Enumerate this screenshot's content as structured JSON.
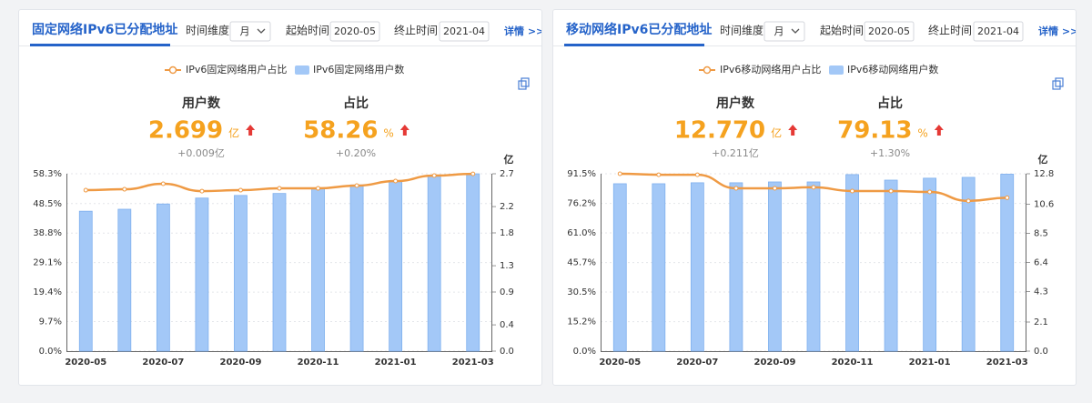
{
  "panels": [
    {
      "title": "固定网络IPv6已分配地址",
      "controls": {
        "dimension_label": "时间维度",
        "dimension_value": "月",
        "start_label": "起始时间",
        "start_value": "2020-05",
        "end_label": "终止时间",
        "end_value": "2021-04",
        "details": "详情 >>"
      },
      "stats": [
        {
          "label": "用户数",
          "value": "2.699",
          "unit": "亿",
          "change": "+0.009亿"
        },
        {
          "label": "占比",
          "value": "58.26",
          "unit": "%",
          "change": "+0.20%"
        }
      ],
      "chart": {
        "type": "bar-line",
        "categories": [
          "2020-05",
          null,
          "2020-07",
          null,
          "2020-09",
          null,
          "2020-11",
          null,
          "2021-01",
          null,
          "2021-03"
        ],
        "series": [
          {
            "name": "IPv6固定网络用户占比",
            "type": "line",
            "color": "#ef9a44",
            "values": [
              52.9,
              53.2,
              55.0,
              52.6,
              52.9,
              53.5,
              53.5,
              54.4,
              55.9,
              57.7,
              58.26
            ]
          },
          {
            "name": "IPv6固定网络用户数",
            "type": "bar",
            "axis": "y2",
            "color": "#a3c8f7",
            "values": [
              2.13,
              2.16,
              2.24,
              2.33,
              2.37,
              2.4,
              2.48,
              2.53,
              2.59,
              2.67,
              2.699
            ]
          }
        ],
        "ylim": [
          0,
          58.3
        ],
        "yticks": [
          {
            "value": 0,
            "label": "0.0%"
          },
          {
            "value": 9.7,
            "label": "9.7%"
          },
          {
            "value": 19.4,
            "label": "19.4%"
          },
          {
            "value": 29.1,
            "label": "29.1%"
          },
          {
            "value": 38.8,
            "label": "38.8%"
          },
          {
            "value": 48.5,
            "label": "48.5%"
          },
          {
            "value": 58.3,
            "label": "58.3%"
          }
        ],
        "y2lim": [
          0,
          2.7
        ],
        "y2ticks": [
          {
            "value": 0,
            "label": "0.0"
          },
          0.4,
          0.9,
          1.3,
          1.8,
          2.2,
          2.7
        ],
        "y2_unit": "亿",
        "grid": true
      }
    },
    {
      "title": "移动网络IPv6已分配地址",
      "controls": {
        "dimension_label": "时间维度",
        "dimension_value": "月",
        "start_label": "起始时间",
        "start_value": "2020-05",
        "end_label": "终止时间",
        "end_value": "2021-04",
        "details": "详情 >>"
      },
      "stats": [
        {
          "label": "用户数",
          "value": "12.770",
          "unit": "亿",
          "change": "+0.211亿"
        },
        {
          "label": "占比",
          "value": "79.13",
          "unit": "%",
          "change": "+1.30%"
        }
      ],
      "chart": {
        "type": "bar-line",
        "categories": [
          "2020-05",
          null,
          "2020-07",
          null,
          "2020-09",
          null,
          "2020-11",
          null,
          "2021-01",
          null,
          "2021-03"
        ],
        "series": [
          {
            "name": "IPv6移动网络用户占比",
            "type": "line",
            "color": "#ef9a44",
            "values": [
              91.5,
              91.0,
              91.0,
              84.0,
              84.0,
              84.5,
              82.6,
              82.6,
              82.1,
              77.5,
              79.13
            ]
          },
          {
            "name": "IPv6移动网络用户数",
            "type": "bar",
            "axis": "y2",
            "color": "#a3c8f7",
            "values": [
              12.08,
              12.08,
              12.15,
              12.15,
              12.21,
              12.21,
              12.74,
              12.34,
              12.48,
              12.54,
              12.77
            ]
          }
        ],
        "ylim": [
          0,
          91.5
        ],
        "yticks": [
          {
            "value": 0,
            "label": "0.0%"
          },
          {
            "value": 15.2,
            "label": "15.2%"
          },
          {
            "value": 30.5,
            "label": "30.5%"
          },
          {
            "value": 45.7,
            "label": "45.7%"
          },
          {
            "value": 61.0,
            "label": "61.0%"
          },
          {
            "value": 76.2,
            "label": "76.2%"
          },
          {
            "value": 91.5,
            "label": "91.5%"
          }
        ],
        "y2lim": [
          0,
          12.8
        ],
        "y2ticks": [
          {
            "value": 0,
            "label": "0.0"
          },
          2.1,
          4.3,
          6.4,
          8.5,
          10.6,
          12.8
        ],
        "y2_unit": "亿",
        "grid": true
      }
    }
  ]
}
